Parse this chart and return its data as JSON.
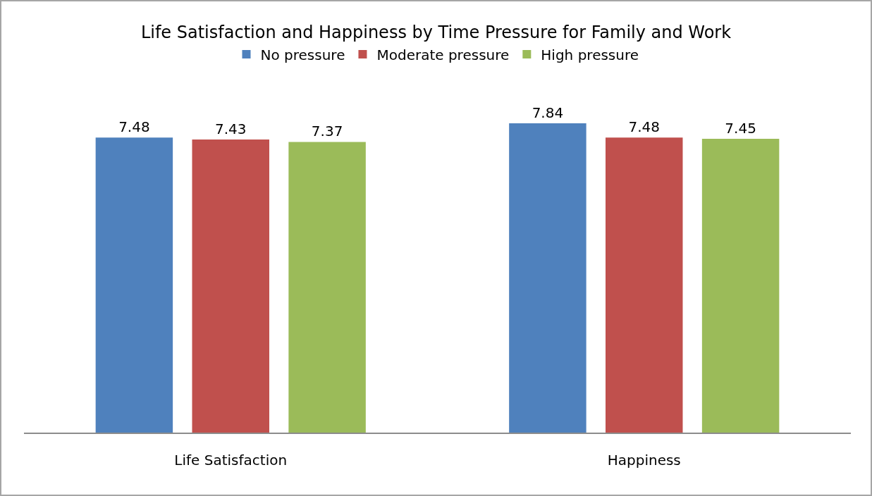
{
  "chart_data": {
    "type": "bar",
    "title": "Life Satisfaction and Happiness by Time Pressure for Family and Work",
    "categories": [
      "Life Satisfaction",
      "Happiness"
    ],
    "series": [
      {
        "name": "No pressure",
        "color": "#4f81bd",
        "values": [
          7.48,
          7.84
        ]
      },
      {
        "name": "Moderate pressure",
        "color": "#c0504d",
        "values": [
          7.43,
          7.48
        ]
      },
      {
        "name": "High pressure",
        "color": "#9bbb59",
        "values": [
          7.37,
          7.45
        ]
      }
    ],
    "tick_labels": "x",
    "data_labels": true,
    "legend": "top"
  }
}
